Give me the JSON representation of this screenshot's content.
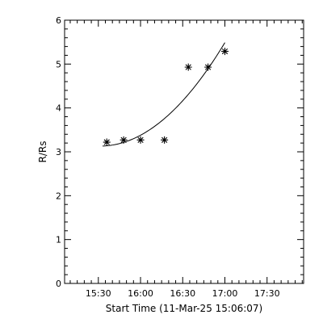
{
  "chart_data": {
    "type": "scatter",
    "xlabel": "Start Time (11-Mar-25 15:06:07)",
    "ylabel": "R/Rs",
    "xlim": [
      "15:06",
      "17:56"
    ],
    "ylim": [
      0,
      6
    ],
    "x_ticks": [
      "15:30",
      "16:00",
      "16:30",
      "17:00",
      "17:30"
    ],
    "y_ticks": [
      "0",
      "1",
      "2",
      "3",
      "4",
      "5",
      "6"
    ],
    "grid": false,
    "series": [
      {
        "marker": "asterisk",
        "points": [
          {
            "x": "15:36",
            "y": 3.22
          },
          {
            "x": "15:48",
            "y": 3.27
          },
          {
            "x": "16:00",
            "y": 3.27
          },
          {
            "x": "16:17",
            "y": 3.27
          },
          {
            "x": "16:34",
            "y": 4.93
          },
          {
            "x": "16:48",
            "y": 4.93
          },
          {
            "x": "17:00",
            "y": 5.29
          }
        ]
      }
    ],
    "fit_curve": {
      "type": "polynomial",
      "from": "15:33",
      "to": "17:00"
    }
  }
}
